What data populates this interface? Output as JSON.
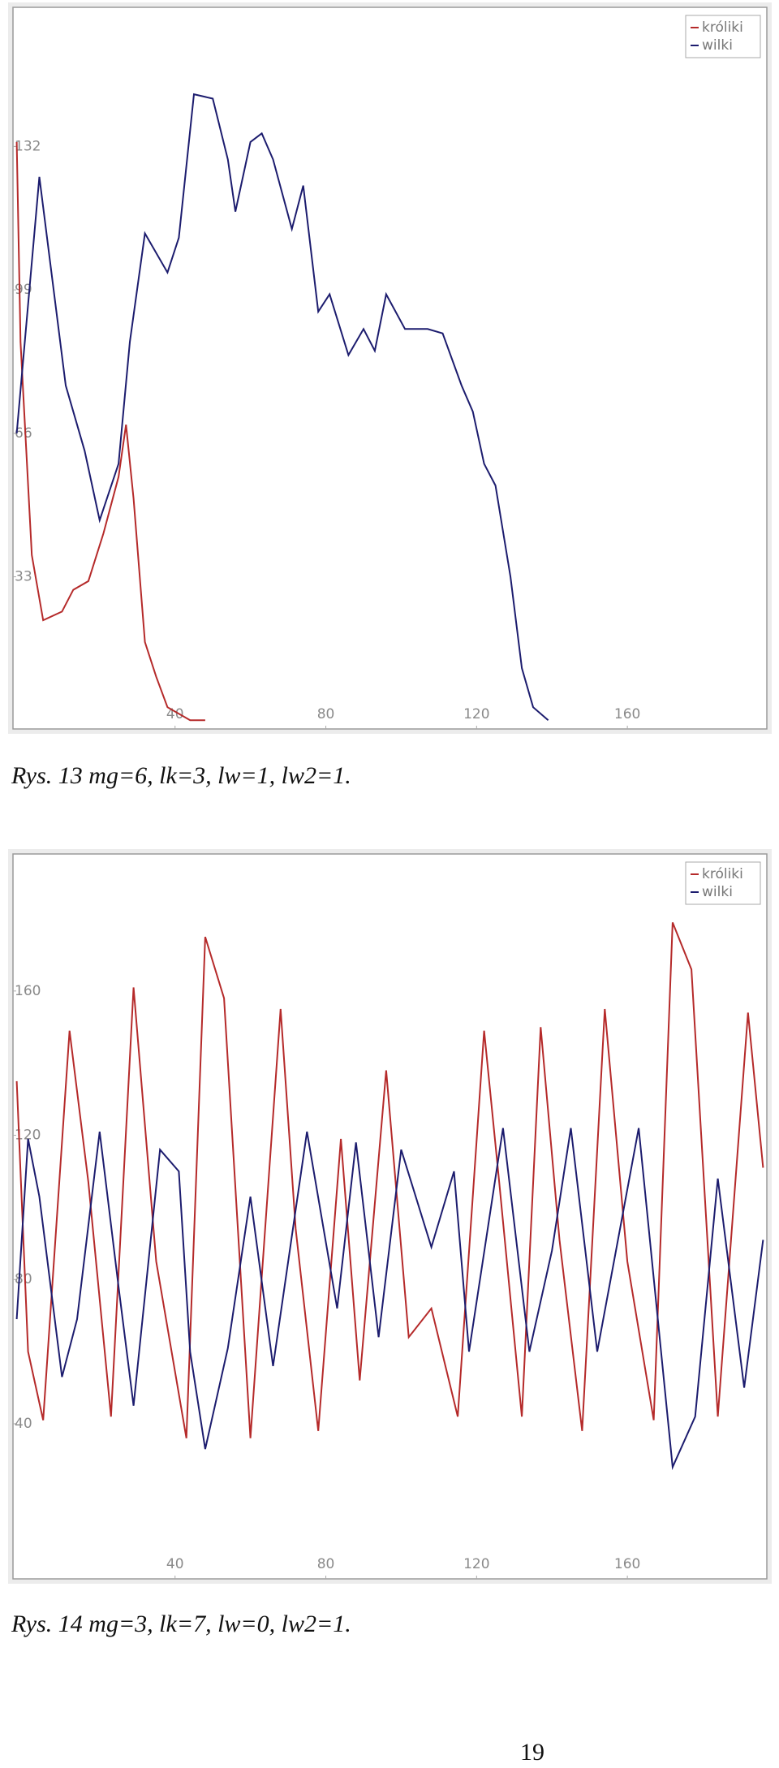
{
  "chart_data": [
    {
      "type": "line",
      "caption": "Rys. 13 mg=6, lk=3, lw=1, lw2=1.",
      "xlim": [
        -3,
        197
      ],
      "ylim": [
        -2,
        164
      ],
      "xticks": [
        40,
        80,
        120,
        160
      ],
      "yticks": [
        33,
        66,
        99,
        132
      ],
      "legend": "top-right",
      "series": [
        {
          "name": "króliki",
          "color": "#b52a2a",
          "x": [
            -2,
            -1,
            2,
            5,
            10,
            13,
            17,
            21,
            25,
            27,
            29,
            32,
            35,
            38,
            44,
            48
          ],
          "values": [
            133,
            87,
            38,
            23,
            25,
            30,
            32,
            43,
            56,
            68,
            51,
            18,
            10,
            3,
            0,
            0
          ]
        },
        {
          "name": "wilki",
          "color": "#1c1c6e",
          "x": [
            -2,
            4,
            11,
            16,
            20,
            25,
            28,
            32,
            38,
            41,
            45,
            50,
            54,
            56,
            60,
            63,
            66,
            71,
            74,
            78,
            81,
            86,
            90,
            93,
            96,
            101,
            107,
            111,
            116,
            119,
            122,
            125,
            129,
            132,
            135,
            139
          ],
          "values": [
            66,
            125,
            77,
            62,
            46,
            59,
            87,
            112,
            103,
            111,
            144,
            143,
            129,
            117,
            133,
            135,
            129,
            113,
            123,
            94,
            98,
            84,
            90,
            85,
            98,
            90,
            90,
            89,
            77,
            71,
            59,
            54,
            33,
            12,
            3,
            0
          ]
        }
      ]
    },
    {
      "type": "line",
      "caption": "Rys. 14 mg=3, lk=7, lw=0, lw2=1.",
      "xlim": [
        -3,
        197
      ],
      "ylim": [
        -3,
        198
      ],
      "xticks": [
        40,
        80,
        120,
        160
      ],
      "yticks": [
        40,
        80,
        120,
        160
      ],
      "legend": "top-right",
      "series": [
        {
          "name": "króliki",
          "color": "#b52a2a",
          "x": [
            -2,
            1,
            5,
            12,
            17,
            23,
            29,
            35,
            43,
            48,
            53,
            60,
            68,
            72,
            78,
            84,
            89,
            96,
            102,
            108,
            115,
            122,
            126,
            132,
            137,
            142,
            148,
            154,
            160,
            167,
            172,
            177,
            184,
            192,
            196
          ],
          "values": [
            135,
            60,
            41,
            149,
            107,
            42,
            161,
            85,
            36,
            175,
            158,
            36,
            155,
            94,
            38,
            119,
            52,
            138,
            64,
            72,
            42,
            149,
            107,
            42,
            150,
            91,
            38,
            155,
            85,
            41,
            179,
            166,
            42,
            154,
            111
          ]
        },
        {
          "name": "wilki",
          "color": "#1c1c6e",
          "x": [
            -2,
            1,
            4,
            10,
            14,
            20,
            25,
            29,
            36,
            41,
            44,
            48,
            54,
            60,
            66,
            75,
            83,
            88,
            94,
            100,
            108,
            114,
            118,
            127,
            134,
            140,
            145,
            152,
            163,
            172,
            178,
            184,
            191,
            196
          ],
          "values": [
            69,
            119,
            103,
            53,
            69,
            121,
            78,
            45,
            116,
            110,
            60,
            33,
            61,
            103,
            56,
            121,
            72,
            118,
            64,
            116,
            89,
            110,
            60,
            122,
            60,
            88,
            122,
            60,
            122,
            28,
            42,
            108,
            50,
            91
          ]
        }
      ]
    }
  ],
  "page_number": "19"
}
